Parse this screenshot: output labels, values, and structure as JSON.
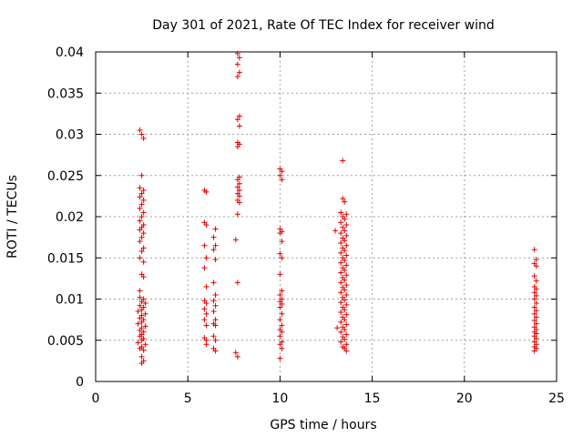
{
  "chart_data": {
    "type": "scatter",
    "title": "Day 301 of 2021, Rate Of TEC Index for receiver wind",
    "xlabel": "GPS time / hours",
    "ylabel": "ROTI / TECUs",
    "xlim": [
      0,
      25
    ],
    "ylim": [
      0,
      0.04
    ],
    "x_ticks": [
      0,
      5,
      10,
      15,
      20,
      25
    ],
    "y_ticks": [
      0,
      0.005,
      0.01,
      0.015,
      0.02,
      0.025,
      0.03,
      0.035,
      0.04
    ],
    "x_tick_labels": [
      "0",
      "5",
      "10",
      "15",
      "20",
      "25"
    ],
    "y_tick_labels": [
      "0",
      "0.005",
      "0.01",
      "0.015",
      "0.02",
      "0.025",
      "0.03",
      "0.035",
      "0.04"
    ],
    "grid": true,
    "marker": "+",
    "marker_color": "#e00000",
    "series": [
      {
        "values": [
          [
            2.4,
            0.0305
          ],
          [
            2.5,
            0.03
          ],
          [
            2.6,
            0.0295
          ],
          [
            2.5,
            0.025
          ],
          [
            2.4,
            0.0235
          ],
          [
            2.6,
            0.0232
          ],
          [
            2.5,
            0.0228
          ],
          [
            2.4,
            0.0224
          ],
          [
            2.6,
            0.022
          ],
          [
            2.5,
            0.0215
          ],
          [
            2.4,
            0.021
          ],
          [
            2.6,
            0.0205
          ],
          [
            2.5,
            0.02
          ],
          [
            2.4,
            0.0195
          ],
          [
            2.6,
            0.019
          ],
          [
            2.5,
            0.0187
          ],
          [
            2.4,
            0.0184
          ],
          [
            2.6,
            0.018
          ],
          [
            2.5,
            0.0175
          ],
          [
            2.4,
            0.017
          ],
          [
            2.6,
            0.0162
          ],
          [
            2.5,
            0.0158
          ],
          [
            2.4,
            0.015
          ],
          [
            2.6,
            0.0145
          ],
          [
            2.5,
            0.013
          ],
          [
            2.6,
            0.0127
          ],
          [
            2.4,
            0.011
          ],
          [
            2.4,
            0.0102
          ],
          [
            2.6,
            0.01
          ],
          [
            2.5,
            0.0097
          ],
          [
            2.7,
            0.0095
          ],
          [
            2.4,
            0.0092
          ],
          [
            2.6,
            0.009
          ],
          [
            2.5,
            0.0087
          ],
          [
            2.3,
            0.0085
          ],
          [
            2.7,
            0.0082
          ],
          [
            2.5,
            0.008
          ],
          [
            2.4,
            0.0077
          ],
          [
            2.6,
            0.0075
          ],
          [
            2.5,
            0.0072
          ],
          [
            2.3,
            0.007
          ],
          [
            2.7,
            0.0067
          ],
          [
            2.5,
            0.0065
          ],
          [
            2.4,
            0.0062
          ],
          [
            2.6,
            0.006
          ],
          [
            2.5,
            0.0057
          ],
          [
            2.4,
            0.0055
          ],
          [
            2.6,
            0.0052
          ],
          [
            2.5,
            0.005
          ],
          [
            2.3,
            0.0047
          ],
          [
            2.7,
            0.0045
          ],
          [
            2.5,
            0.0042
          ],
          [
            2.4,
            0.004
          ],
          [
            2.6,
            0.0038
          ],
          [
            2.5,
            0.003
          ],
          [
            2.6,
            0.0025
          ],
          [
            2.5,
            0.0022
          ],
          [
            5.9,
            0.0232
          ],
          [
            6.0,
            0.023
          ],
          [
            5.9,
            0.0193
          ],
          [
            6.0,
            0.019
          ],
          [
            5.9,
            0.0165
          ],
          [
            6.0,
            0.015
          ],
          [
            5.9,
            0.0138
          ],
          [
            6.0,
            0.0115
          ],
          [
            5.9,
            0.0098
          ],
          [
            6.0,
            0.0095
          ],
          [
            5.9,
            0.0088
          ],
          [
            6.0,
            0.0082
          ],
          [
            5.9,
            0.0075
          ],
          [
            6.0,
            0.0068
          ],
          [
            5.9,
            0.0053
          ],
          [
            6.0,
            0.005
          ],
          [
            6.0,
            0.0045
          ],
          [
            6.5,
            0.0185
          ],
          [
            6.4,
            0.0175
          ],
          [
            6.5,
            0.0165
          ],
          [
            6.4,
            0.016
          ],
          [
            6.5,
            0.0148
          ],
          [
            6.4,
            0.012
          ],
          [
            6.5,
            0.0105
          ],
          [
            6.4,
            0.0098
          ],
          [
            6.5,
            0.0092
          ],
          [
            6.4,
            0.0085
          ],
          [
            6.5,
            0.0075
          ],
          [
            6.4,
            0.007
          ],
          [
            6.5,
            0.0068
          ],
          [
            6.4,
            0.0055
          ],
          [
            6.5,
            0.005
          ],
          [
            6.4,
            0.004
          ],
          [
            6.5,
            0.0037
          ],
          [
            7.7,
            0.0398
          ],
          [
            7.8,
            0.0393
          ],
          [
            7.7,
            0.0385
          ],
          [
            7.8,
            0.0375
          ],
          [
            7.7,
            0.037
          ],
          [
            7.8,
            0.0322
          ],
          [
            7.7,
            0.0318
          ],
          [
            7.8,
            0.031
          ],
          [
            7.7,
            0.029
          ],
          [
            7.8,
            0.0288
          ],
          [
            7.7,
            0.0285
          ],
          [
            7.8,
            0.0248
          ],
          [
            7.7,
            0.0245
          ],
          [
            7.8,
            0.024
          ],
          [
            7.7,
            0.0236
          ],
          [
            7.8,
            0.0232
          ],
          [
            7.7,
            0.0228
          ],
          [
            7.8,
            0.0225
          ],
          [
            7.7,
            0.022
          ],
          [
            7.8,
            0.0217
          ],
          [
            7.7,
            0.0203
          ],
          [
            7.6,
            0.0172
          ],
          [
            7.7,
            0.012
          ],
          [
            7.6,
            0.0035
          ],
          [
            7.7,
            0.003
          ],
          [
            10.0,
            0.0258
          ],
          [
            10.1,
            0.0255
          ],
          [
            10.0,
            0.025
          ],
          [
            10.1,
            0.0245
          ],
          [
            10.0,
            0.0185
          ],
          [
            10.1,
            0.0182
          ],
          [
            10.0,
            0.018
          ],
          [
            10.1,
            0.017
          ],
          [
            10.0,
            0.0155
          ],
          [
            10.1,
            0.015
          ],
          [
            10.0,
            0.013
          ],
          [
            10.1,
            0.011
          ],
          [
            10.0,
            0.0105
          ],
          [
            10.1,
            0.01
          ],
          [
            10.0,
            0.0097
          ],
          [
            10.1,
            0.0094
          ],
          [
            10.0,
            0.009
          ],
          [
            10.1,
            0.0082
          ],
          [
            10.0,
            0.0075
          ],
          [
            10.1,
            0.0068
          ],
          [
            10.0,
            0.0063
          ],
          [
            10.1,
            0.006
          ],
          [
            10.0,
            0.0055
          ],
          [
            10.1,
            0.0048
          ],
          [
            10.0,
            0.0045
          ],
          [
            10.1,
            0.004
          ],
          [
            10.0,
            0.0028
          ],
          [
            13.0,
            0.0183
          ],
          [
            13.1,
            0.0065
          ],
          [
            13.4,
            0.0268
          ],
          [
            13.4,
            0.0222
          ],
          [
            13.5,
            0.0218
          ],
          [
            13.3,
            0.0205
          ],
          [
            13.6,
            0.0203
          ],
          [
            13.4,
            0.02
          ],
          [
            13.5,
            0.0197
          ],
          [
            13.3,
            0.0193
          ],
          [
            13.6,
            0.019
          ],
          [
            13.4,
            0.0187
          ],
          [
            13.5,
            0.0183
          ],
          [
            13.3,
            0.018
          ],
          [
            13.6,
            0.0177
          ],
          [
            13.4,
            0.0174
          ],
          [
            13.5,
            0.0171
          ],
          [
            13.3,
            0.0168
          ],
          [
            13.6,
            0.0165
          ],
          [
            13.4,
            0.0162
          ],
          [
            13.5,
            0.0159
          ],
          [
            13.3,
            0.0156
          ],
          [
            13.6,
            0.0153
          ],
          [
            13.4,
            0.015
          ],
          [
            13.5,
            0.0147
          ],
          [
            13.3,
            0.0144
          ],
          [
            13.6,
            0.0141
          ],
          [
            13.4,
            0.0138
          ],
          [
            13.5,
            0.0135
          ],
          [
            13.3,
            0.0132
          ],
          [
            13.6,
            0.0129
          ],
          [
            13.4,
            0.0126
          ],
          [
            13.5,
            0.0123
          ],
          [
            13.3,
            0.012
          ],
          [
            13.6,
            0.0117
          ],
          [
            13.4,
            0.0114
          ],
          [
            13.5,
            0.0111
          ],
          [
            13.3,
            0.0108
          ],
          [
            13.6,
            0.0105
          ],
          [
            13.4,
            0.0102
          ],
          [
            13.5,
            0.0099
          ],
          [
            13.3,
            0.0096
          ],
          [
            13.6,
            0.0093
          ],
          [
            13.4,
            0.009
          ],
          [
            13.5,
            0.0087
          ],
          [
            13.3,
            0.0084
          ],
          [
            13.6,
            0.0081
          ],
          [
            13.4,
            0.0078
          ],
          [
            13.5,
            0.0075
          ],
          [
            13.3,
            0.0072
          ],
          [
            13.6,
            0.0069
          ],
          [
            13.4,
            0.0066
          ],
          [
            13.5,
            0.0063
          ],
          [
            13.3,
            0.006
          ],
          [
            13.6,
            0.0057
          ],
          [
            13.4,
            0.0054
          ],
          [
            13.5,
            0.0051
          ],
          [
            13.3,
            0.0048
          ],
          [
            13.6,
            0.0045
          ],
          [
            13.4,
            0.0042
          ],
          [
            13.5,
            0.004
          ],
          [
            13.6,
            0.0037
          ],
          [
            23.8,
            0.016
          ],
          [
            23.9,
            0.0148
          ],
          [
            23.8,
            0.0143
          ],
          [
            23.9,
            0.014
          ],
          [
            23.8,
            0.0128
          ],
          [
            23.9,
            0.0122
          ],
          [
            23.8,
            0.0115
          ],
          [
            23.9,
            0.0112
          ],
          [
            23.8,
            0.0108
          ],
          [
            23.9,
            0.0104
          ],
          [
            23.8,
            0.01
          ],
          [
            23.9,
            0.0095
          ],
          [
            23.8,
            0.009
          ],
          [
            23.9,
            0.0086
          ],
          [
            23.8,
            0.0082
          ],
          [
            23.9,
            0.0078
          ],
          [
            23.8,
            0.0074
          ],
          [
            23.9,
            0.007
          ],
          [
            23.8,
            0.0066
          ],
          [
            23.9,
            0.0063
          ],
          [
            23.8,
            0.006
          ],
          [
            23.9,
            0.0058
          ],
          [
            23.8,
            0.0055
          ],
          [
            23.9,
            0.0052
          ],
          [
            23.8,
            0.0048
          ],
          [
            23.9,
            0.0045
          ],
          [
            23.8,
            0.0042
          ],
          [
            23.9,
            0.004
          ],
          [
            23.8,
            0.0037
          ]
        ]
      }
    ]
  }
}
